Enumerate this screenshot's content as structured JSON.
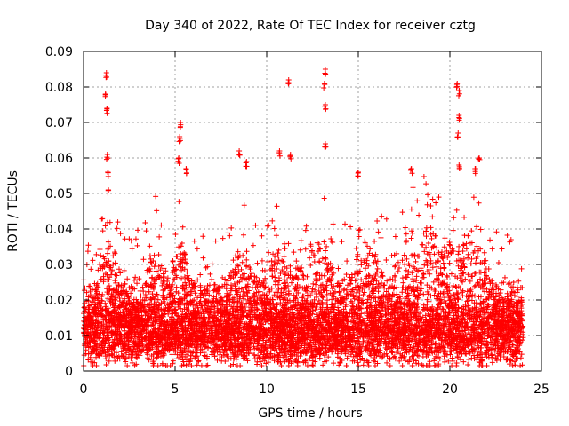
{
  "chart_data": {
    "type": "scatter",
    "title": "Day 340 of 2022, Rate Of TEC Index for receiver cztg",
    "xlabel": "GPS time / hours",
    "ylabel": "ROTI / TECUs",
    "xlim": [
      0,
      25
    ],
    "ylim": [
      0,
      0.09
    ],
    "grid": true,
    "marker": "+",
    "color": "#ff0000",
    "xticks": [
      {
        "value": 0,
        "label": "0"
      },
      {
        "value": 5,
        "label": "5"
      },
      {
        "value": 10,
        "label": "10"
      },
      {
        "value": 15,
        "label": "15"
      },
      {
        "value": 20,
        "label": "20"
      },
      {
        "value": 25,
        "label": "25"
      }
    ],
    "yticks": [
      {
        "value": 0,
        "label": "0"
      },
      {
        "value": 0.01,
        "label": "0.01"
      },
      {
        "value": 0.02,
        "label": "0.02"
      },
      {
        "value": 0.03,
        "label": "0.03"
      },
      {
        "value": 0.04,
        "label": "0.04"
      },
      {
        "value": 0.05,
        "label": "0.05"
      },
      {
        "value": 0.06,
        "label": "0.06"
      },
      {
        "value": 0.07,
        "label": "0.07"
      },
      {
        "value": 0.08,
        "label": "0.08"
      },
      {
        "value": 0.09,
        "label": "0.09"
      }
    ],
    "data_extent_hours": [
      0,
      24
    ],
    "baseline_band": [
      0.005,
      0.015
    ],
    "spikes": [
      {
        "x": 1.25,
        "y": 0.084
      },
      {
        "x": 1.2,
        "y": 0.078
      },
      {
        "x": 1.28,
        "y": 0.074
      },
      {
        "x": 1.3,
        "y": 0.061
      },
      {
        "x": 1.32,
        "y": 0.056
      },
      {
        "x": 1.35,
        "y": 0.051
      },
      {
        "x": 5.3,
        "y": 0.07
      },
      {
        "x": 5.25,
        "y": 0.066
      },
      {
        "x": 5.6,
        "y": 0.057
      },
      {
        "x": 5.2,
        "y": 0.06
      },
      {
        "x": 8.5,
        "y": 0.062
      },
      {
        "x": 8.9,
        "y": 0.059
      },
      {
        "x": 11.2,
        "y": 0.082
      },
      {
        "x": 10.7,
        "y": 0.062
      },
      {
        "x": 11.3,
        "y": 0.061
      },
      {
        "x": 13.2,
        "y": 0.085
      },
      {
        "x": 13.15,
        "y": 0.081
      },
      {
        "x": 13.2,
        "y": 0.075
      },
      {
        "x": 13.2,
        "y": 0.064
      },
      {
        "x": 15.0,
        "y": 0.056
      },
      {
        "x": 17.9,
        "y": 0.057
      },
      {
        "x": 20.4,
        "y": 0.081
      },
      {
        "x": 20.5,
        "y": 0.079
      },
      {
        "x": 20.5,
        "y": 0.072
      },
      {
        "x": 20.45,
        "y": 0.067
      },
      {
        "x": 21.6,
        "y": 0.06
      },
      {
        "x": 21.4,
        "y": 0.057
      },
      {
        "x": 20.5,
        "y": 0.058
      }
    ]
  }
}
